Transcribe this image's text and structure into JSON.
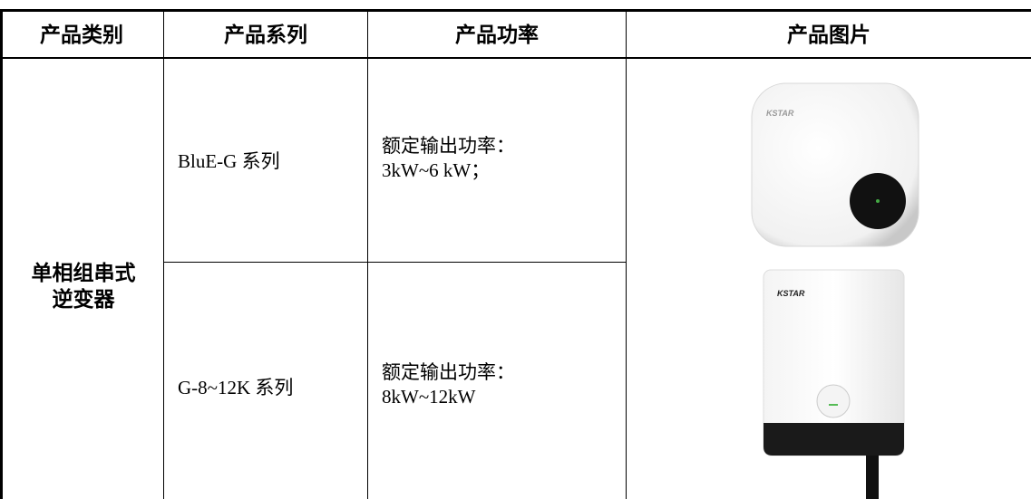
{
  "table": {
    "header": [
      "产品类别",
      "产品系列",
      "产品功率",
      "产品图片"
    ],
    "category": [
      "单相组串式",
      "逆变器"
    ],
    "rows": [
      {
        "series": "BluE-G 系列",
        "power": [
          "额定输出功率：",
          "3kW~6 kW；"
        ],
        "logo": "KSTAR"
      },
      {
        "series": "G-8~12K 系列",
        "power": [
          "额定输出功率：",
          "8kW~12kW"
        ],
        "logo": "KSTAR"
      }
    ]
  }
}
